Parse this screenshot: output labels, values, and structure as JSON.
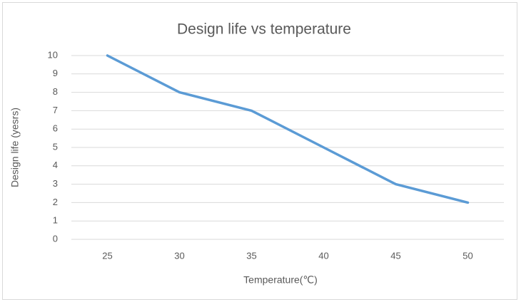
{
  "chart_data": {
    "type": "line",
    "title": "Design life vs temperature",
    "xlabel": "Temperature(℃)",
    "ylabel": "Design life (yesrs)",
    "categories": [
      "25",
      "30",
      "35",
      "40",
      "45",
      "50"
    ],
    "values": [
      10,
      8,
      7,
      5,
      3,
      2
    ],
    "color": "#5b9bd5",
    "ylim": [
      0,
      10
    ],
    "yticks": [
      0,
      1,
      2,
      3,
      4,
      5,
      6,
      7,
      8,
      9,
      10
    ],
    "grid": true
  }
}
